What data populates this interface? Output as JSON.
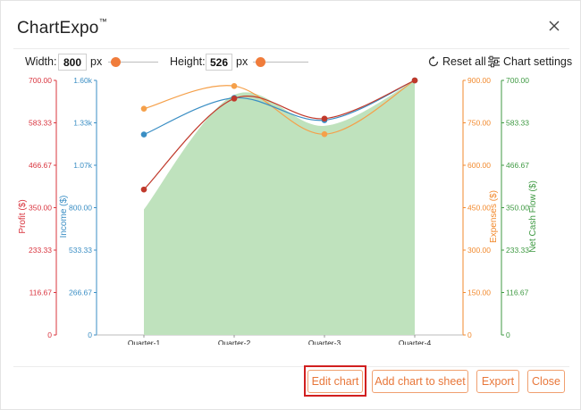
{
  "app": {
    "title": "ChartExpo",
    "title_mark": "™"
  },
  "toolbar": {
    "width_label": "Width:",
    "width_value": "800",
    "width_unit": "px",
    "height_label": "Height:",
    "height_value": "526",
    "height_unit": "px",
    "reset_label": "Reset all",
    "settings_label": "Chart settings",
    "accent_color": "#f07c3b"
  },
  "footer": {
    "edit_label": "Edit chart",
    "add_label": "Add chart to sheet",
    "export_label": "Export",
    "close_label": "Close"
  },
  "chart_data": {
    "type": "line",
    "categories": [
      "Quarter-1",
      "Quarter-2",
      "Quarter-3",
      "Quarter-4"
    ],
    "series": [
      {
        "name": "Profit ($)",
        "axis": "profit",
        "color": "#c0392b",
        "values": [
          400,
          650,
          595,
          700
        ]
      },
      {
        "name": "Income ($)",
        "axis": "income",
        "color": "#3a8ec4",
        "values": [
          1260,
          1490,
          1350,
          1600
        ]
      },
      {
        "name": "Expenses ($)",
        "axis": "expenses",
        "color": "#f5a04a",
        "values": [
          800,
          880,
          710,
          900
        ]
      },
      {
        "name": "Net Cash Flow ($)",
        "axis": "netcash",
        "type": "area",
        "color": "#bfe2bd",
        "values": [
          345,
          660,
          575,
          700
        ]
      }
    ],
    "axes": {
      "profit": {
        "label": "Profit ($)",
        "color": "#d9343e",
        "ticks": [
          "0",
          "116.67",
          "233.33",
          "350.00",
          "466.67",
          "583.33",
          "700.00"
        ],
        "range": [
          0,
          700
        ]
      },
      "income": {
        "label": "Income ($)",
        "color": "#3a8ec4",
        "ticks": [
          "0",
          "266.67",
          "533.33",
          "800.00",
          "1.07k",
          "1.33k",
          "1.60k"
        ],
        "range": [
          0,
          1600
        ]
      },
      "expenses": {
        "label": "Expenses ($)",
        "color": "#f28a2e",
        "ticks": [
          "0",
          "150.00",
          "300.00",
          "450.00",
          "600.00",
          "750.00",
          "900.00"
        ],
        "range": [
          0,
          900
        ]
      },
      "netcash": {
        "label": "Net Cash Flow ($)",
        "color": "#3f9a43",
        "ticks": [
          "0",
          "116.67",
          "233.33",
          "350.00",
          "466.67",
          "583.33",
          "700.00"
        ],
        "range": [
          0,
          700
        ]
      }
    }
  }
}
